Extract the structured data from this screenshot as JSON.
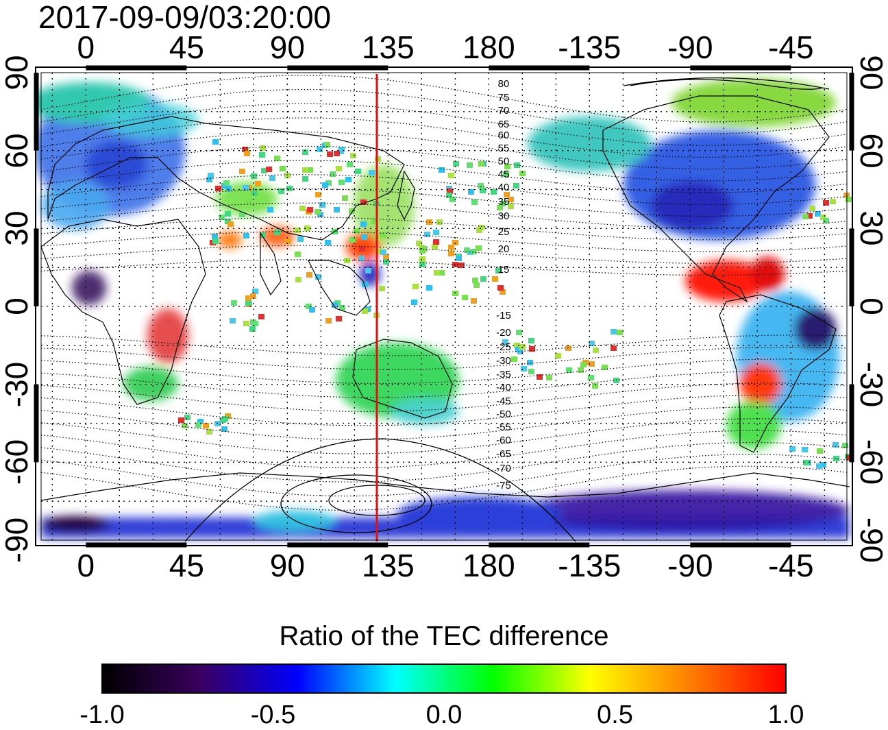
{
  "title": "2017-09-09/03:20:00",
  "axes": {
    "lon_ticks_top": [
      "0",
      "45",
      "90",
      "135",
      "180",
      "-135",
      "-90",
      "-45"
    ],
    "lon_ticks_bottom": [
      "0",
      "45",
      "90",
      "135",
      "180",
      "-135",
      "-90",
      "-45"
    ],
    "lat_ticks_left": [
      "90",
      "60",
      "30",
      "0",
      "-30",
      "-60",
      "-90"
    ],
    "lat_ticks_right": [
      "90",
      "60",
      "30",
      "0",
      "-30",
      "-60",
      "-90"
    ]
  },
  "meridian_marker": {
    "longitude": 130,
    "color": "#e01010"
  },
  "contour_labels": [
    "80",
    "75",
    "70",
    "65",
    "60",
    "55",
    "50",
    "45",
    "40",
    "35",
    "30",
    "25",
    "20",
    "15",
    "-15",
    "-20",
    "-25",
    "-30",
    "-35",
    "-40",
    "-45",
    "-50",
    "-55",
    "-60",
    "-65",
    "-70",
    "-75"
  ],
  "colorbar": {
    "title": "Ratio of the TEC difference",
    "ticks": [
      "-1.0",
      "-0.5",
      "0.0",
      "0.5",
      "1.0"
    ],
    "range": [
      -1.0,
      1.0
    ]
  },
  "colors": {
    "scale": [
      "#000000",
      "#3a0060",
      "#0000ff",
      "#00ffff",
      "#00ff00",
      "#ffff00",
      "#ff8000",
      "#ff0000"
    ]
  }
}
